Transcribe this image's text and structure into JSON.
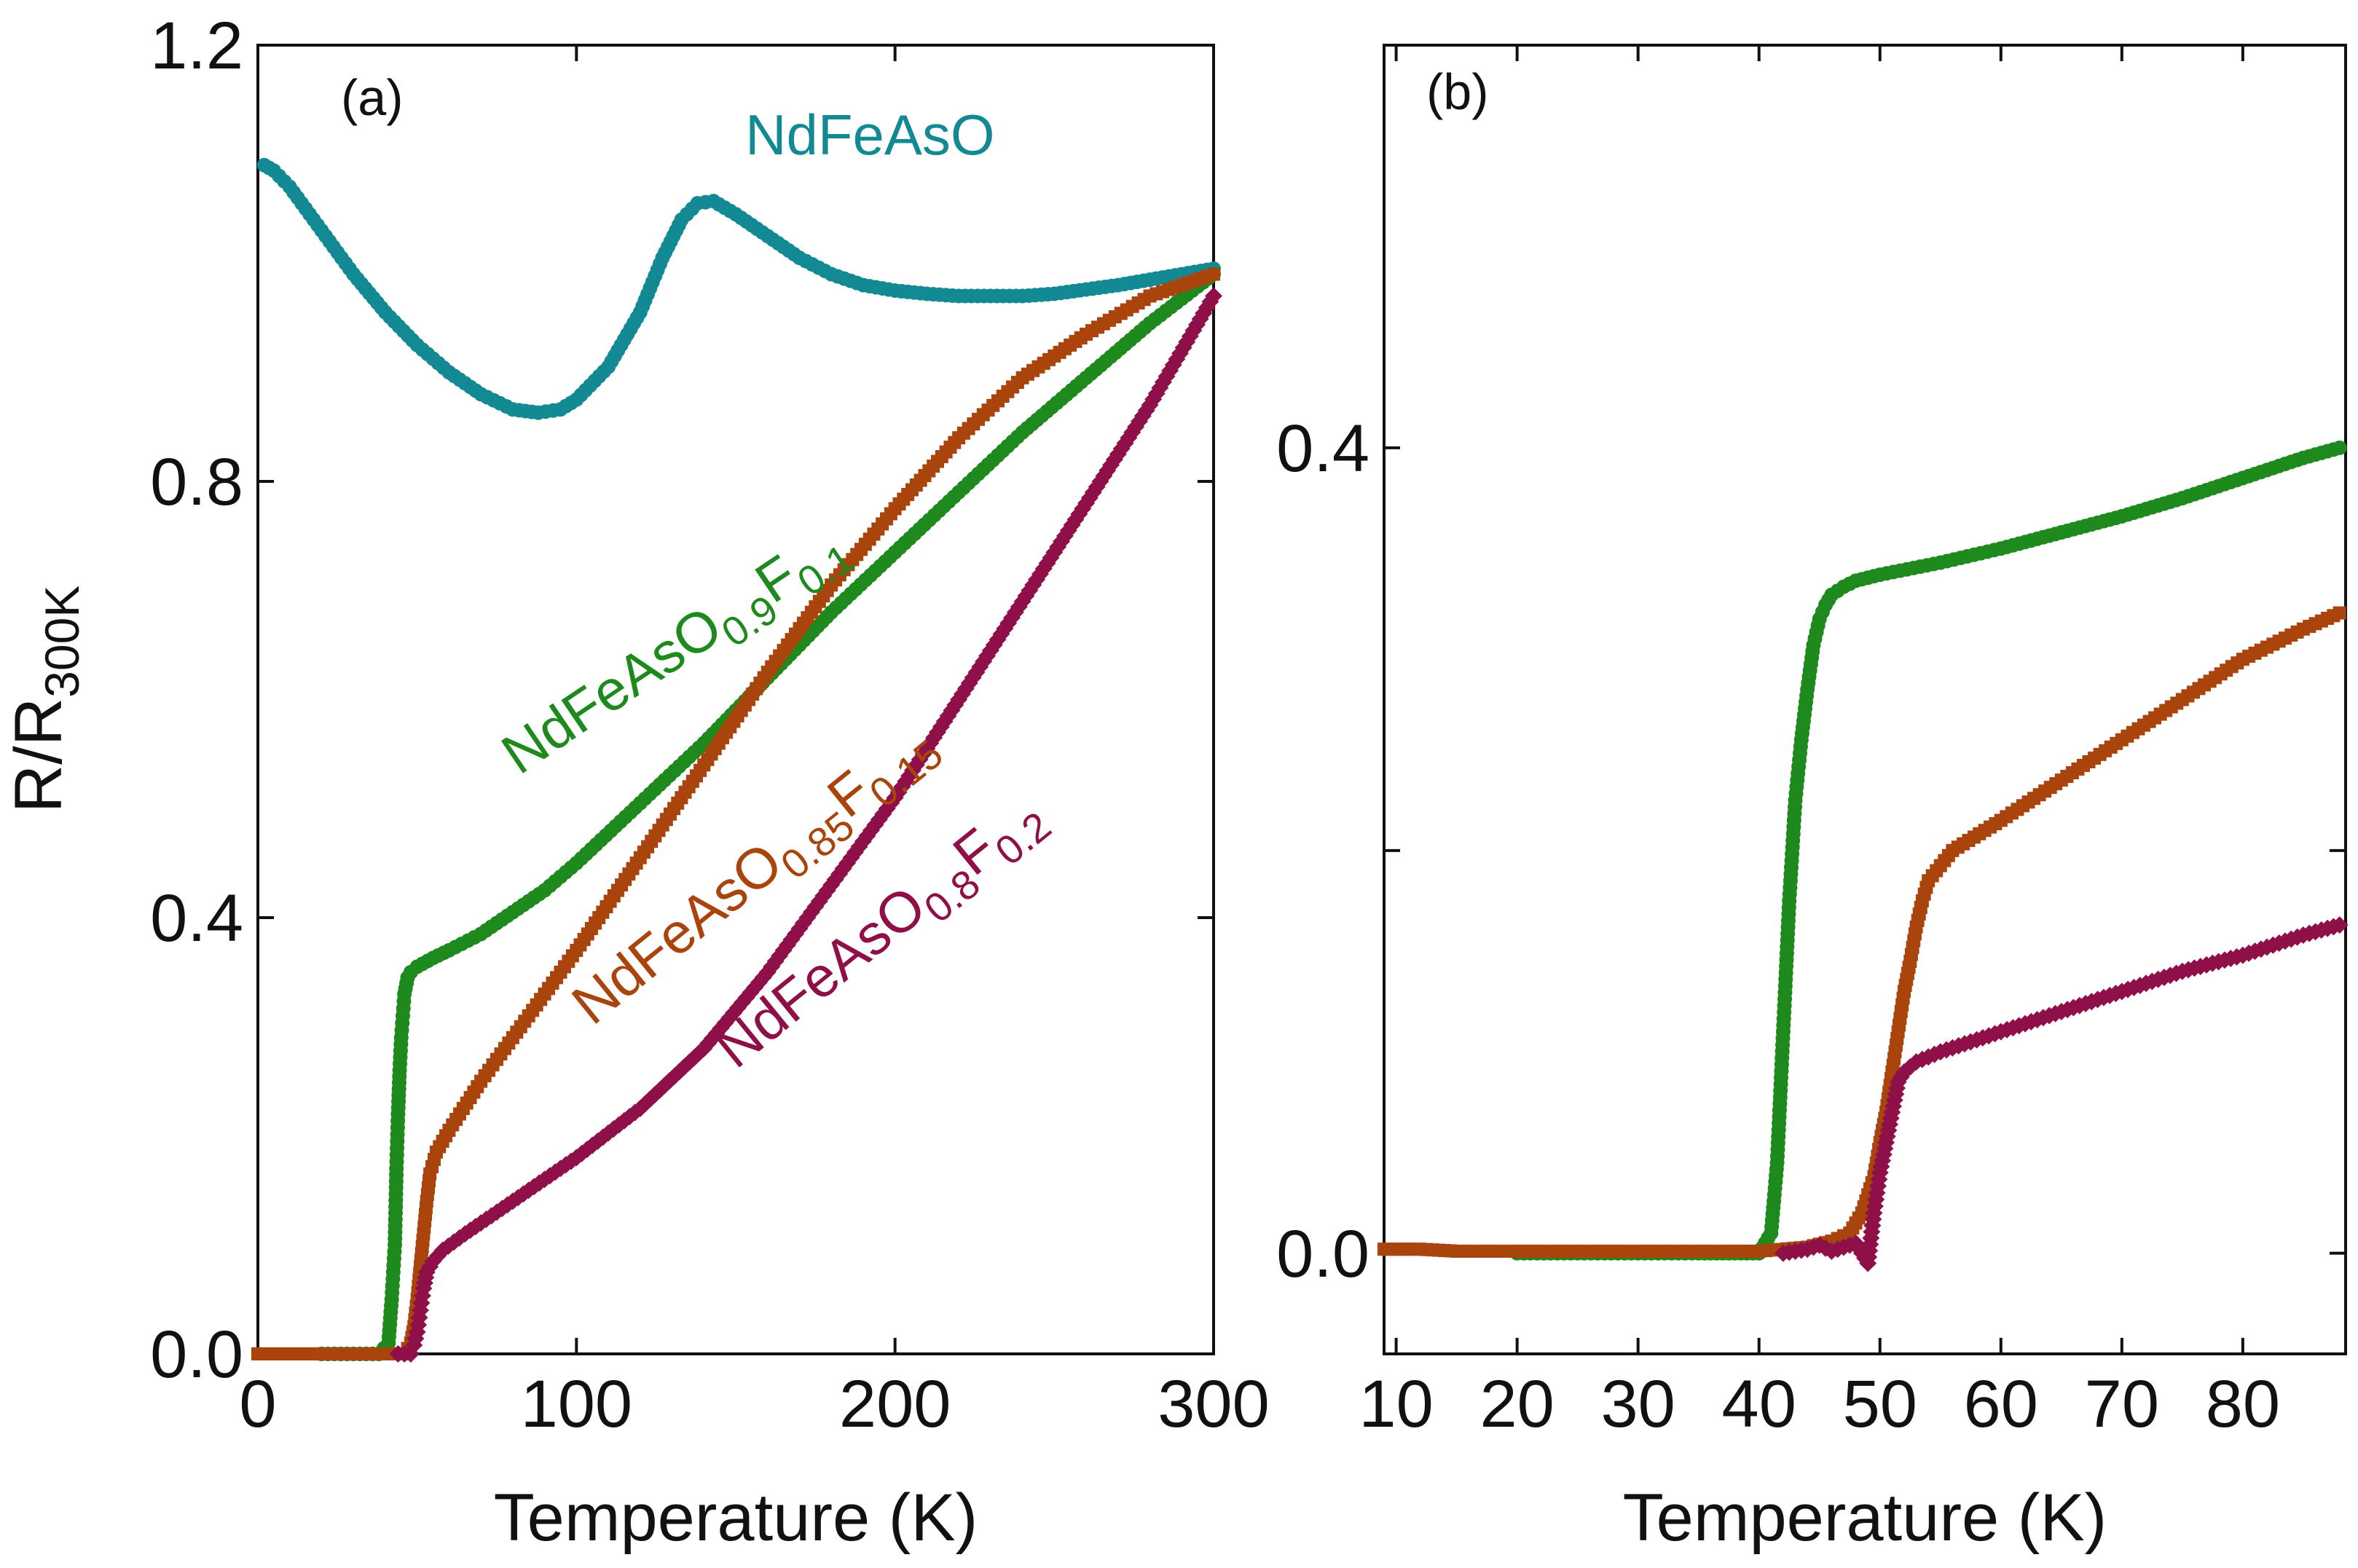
{
  "chart_data": [
    {
      "type": "scatter",
      "panel_label": "(a)",
      "xlabel": "Temperature (K)",
      "ylabel": "R/R",
      "ylabel_sub": "300K",
      "xlim": [
        0,
        300
      ],
      "ylim": [
        0,
        1.2
      ],
      "xticks": [
        0,
        100,
        200,
        300
      ],
      "yticks": [
        0.0,
        0.4,
        0.8,
        1.2
      ],
      "xtick_labels": [
        "0",
        "100",
        "200",
        "300"
      ],
      "ytick_labels": [
        "0.0",
        "0.4",
        "0.8",
        "1.2"
      ],
      "grid": false,
      "annotations": [
        {
          "id": "ann-nd",
          "parts": [
            {
              "t": "NdFeAsO"
            }
          ],
          "color": "#138a93",
          "x": 153,
          "y": 1.1,
          "rotate": 0
        },
        {
          "id": "ann-f01",
          "parts": [
            {
              "t": "NdFeAsO"
            },
            {
              "t": "0.9",
              "sub": true
            },
            {
              "t": "F"
            },
            {
              "t": "0.1",
              "sub": true
            }
          ],
          "color": "#1e8a1e",
          "x": 82,
          "y": 0.53,
          "rotate": -34
        },
        {
          "id": "ann-f015",
          "parts": [
            {
              "t": "NdFeAsO"
            },
            {
              "t": "0.85",
              "sub": true
            },
            {
              "t": "F"
            },
            {
              "t": "0.15",
              "sub": true
            }
          ],
          "color": "#a8440c",
          "x": 105,
          "y": 0.3,
          "rotate": -39
        },
        {
          "id": "ann-f02",
          "parts": [
            {
              "t": "NdFeAsO"
            },
            {
              "t": "0.8",
              "sub": true
            },
            {
              "t": "F"
            },
            {
              "t": "0.2",
              "sub": true
            }
          ],
          "color": "#8f1048",
          "x": 150,
          "y": 0.26,
          "rotate": -39
        }
      ],
      "series": [
        {
          "name": "NdFeAsO",
          "color": "#138a93",
          "marker": "circle",
          "connect": false,
          "points": [
            [
              2,
              1.09
            ],
            [
              5,
              1.085
            ],
            [
              10,
              1.07
            ],
            [
              15,
              1.05
            ],
            [
              20,
              1.03
            ],
            [
              30,
              0.99
            ],
            [
              40,
              0.955
            ],
            [
              50,
              0.925
            ],
            [
              60,
              0.9
            ],
            [
              70,
              0.88
            ],
            [
              80,
              0.866
            ],
            [
              88,
              0.863
            ],
            [
              95,
              0.866
            ],
            [
              100,
              0.875
            ],
            [
              110,
              0.905
            ],
            [
              120,
              0.955
            ],
            [
              127,
              1.005
            ],
            [
              133,
              1.04
            ],
            [
              138,
              1.055
            ],
            [
              143,
              1.057
            ],
            [
              150,
              1.045
            ],
            [
              160,
              1.025
            ],
            [
              170,
              1.005
            ],
            [
              180,
              0.99
            ],
            [
              190,
              0.98
            ],
            [
              200,
              0.975
            ],
            [
              210,
              0.972
            ],
            [
              220,
              0.97
            ],
            [
              230,
              0.97
            ],
            [
              240,
              0.97
            ],
            [
              250,
              0.972
            ],
            [
              260,
              0.976
            ],
            [
              270,
              0.98
            ],
            [
              280,
              0.985
            ],
            [
              290,
              0.99
            ],
            [
              300,
              0.995
            ]
          ]
        },
        {
          "name": "NdFeAsO0.9F0.1",
          "color": "#1e8a1e",
          "marker": "circle",
          "connect": true,
          "points": [
            [
              20,
              0.0
            ],
            [
              30,
              0.0
            ],
            [
              38,
              0.0
            ],
            [
              41,
              0.01
            ],
            [
              42,
              0.05
            ],
            [
              43,
              0.1
            ],
            [
              43.5,
              0.17
            ],
            [
              44,
              0.22
            ],
            [
              44.5,
              0.26
            ],
            [
              45,
              0.29
            ],
            [
              45.5,
              0.31
            ],
            [
              46,
              0.33
            ],
            [
              47,
              0.345
            ],
            [
              48,
              0.35
            ],
            [
              50,
              0.355
            ],
            [
              55,
              0.363
            ],
            [
              60,
              0.37
            ],
            [
              70,
              0.385
            ],
            [
              80,
              0.405
            ],
            [
              90,
              0.425
            ],
            [
              100,
              0.45
            ],
            [
              120,
              0.505
            ],
            [
              140,
              0.56
            ],
            [
              160,
              0.62
            ],
            [
              180,
              0.68
            ],
            [
              200,
              0.735
            ],
            [
              220,
              0.79
            ],
            [
              240,
              0.845
            ],
            [
              260,
              0.895
            ],
            [
              280,
              0.945
            ],
            [
              300,
              0.99
            ]
          ]
        },
        {
          "name": "NdFeAsO0.85F0.15",
          "color": "#a8440c",
          "marker": "square",
          "connect": false,
          "points": [
            [
              0,
              0.0
            ],
            [
              10,
              0.0
            ],
            [
              20,
              0.0
            ],
            [
              30,
              0.0
            ],
            [
              38,
              0.0
            ],
            [
              44,
              0.0
            ],
            [
              46,
              0.0
            ],
            [
              48,
              0.01
            ],
            [
              49,
              0.025
            ],
            [
              50,
              0.05
            ],
            [
              51,
              0.08
            ],
            [
              52,
              0.11
            ],
            [
              53,
              0.14
            ],
            [
              54,
              0.165
            ],
            [
              56,
              0.185
            ],
            [
              60,
              0.205
            ],
            [
              70,
              0.25
            ],
            [
              80,
              0.29
            ],
            [
              90,
              0.33
            ],
            [
              100,
              0.37
            ],
            [
              120,
              0.455
            ],
            [
              140,
              0.54
            ],
            [
              160,
              0.625
            ],
            [
              180,
              0.705
            ],
            [
              200,
              0.775
            ],
            [
              220,
              0.84
            ],
            [
              240,
              0.895
            ],
            [
              260,
              0.935
            ],
            [
              280,
              0.97
            ],
            [
              300,
              0.99
            ]
          ]
        },
        {
          "name": "NdFeAsO0.8F0.2",
          "color": "#8f1048",
          "marker": "diamond",
          "connect": false,
          "points": [
            [
              44,
              0.0
            ],
            [
              46,
              0.0
            ],
            [
              48,
              0.0
            ],
            [
              49,
              0.008
            ],
            [
              50,
              0.02
            ],
            [
              51,
              0.04
            ],
            [
              52,
              0.06
            ],
            [
              53,
              0.075
            ],
            [
              55,
              0.085
            ],
            [
              58,
              0.095
            ],
            [
              65,
              0.11
            ],
            [
              75,
              0.13
            ],
            [
              85,
              0.15
            ],
            [
              100,
              0.18
            ],
            [
              120,
              0.225
            ],
            [
              140,
              0.28
            ],
            [
              160,
              0.35
            ],
            [
              180,
              0.43
            ],
            [
              200,
              0.51
            ],
            [
              220,
              0.6
            ],
            [
              240,
              0.69
            ],
            [
              260,
              0.78
            ],
            [
              280,
              0.87
            ],
            [
              300,
              0.97
            ]
          ]
        }
      ]
    },
    {
      "type": "scatter",
      "panel_label": "(b)",
      "xlabel": "Temperature (K)",
      "xlim": [
        9,
        88.5
      ],
      "ylim": [
        -0.05,
        0.6
      ],
      "xticks": [
        10,
        20,
        30,
        40,
        50,
        60,
        70,
        80
      ],
      "yticks": [
        0.0,
        0.2,
        0.4
      ],
      "xtick_labels": [
        "10",
        "20",
        "30",
        "40",
        "50",
        "60",
        "70",
        "80"
      ],
      "ytick_labels": [
        "0.0",
        "0.4"
      ],
      "ytick_label_values": [
        0.0,
        0.4
      ],
      "grid": false,
      "series": [
        {
          "name": "NdFeAsO0.9F0.1",
          "color": "#1e8a1e",
          "marker": "circle",
          "connect": true,
          "points": [
            [
              20,
              0.0
            ],
            [
              25,
              0.0
            ],
            [
              30,
              0.0
            ],
            [
              35,
              0.0
            ],
            [
              38,
              0.0
            ],
            [
              40,
              0.0
            ],
            [
              41,
              0.01
            ],
            [
              41.5,
              0.045
            ],
            [
              42,
              0.11
            ],
            [
              42.5,
              0.175
            ],
            [
              43,
              0.225
            ],
            [
              43.5,
              0.255
            ],
            [
              44,
              0.28
            ],
            [
              44.5,
              0.302
            ],
            [
              45,
              0.315
            ],
            [
              45.5,
              0.322
            ],
            [
              46,
              0.327
            ],
            [
              47,
              0.331
            ],
            [
              48,
              0.334
            ],
            [
              50,
              0.337
            ],
            [
              55,
              0.343
            ],
            [
              60,
              0.35
            ],
            [
              65,
              0.358
            ],
            [
              70,
              0.366
            ],
            [
              75,
              0.375
            ],
            [
              80,
              0.385
            ],
            [
              85,
              0.395
            ],
            [
              88,
              0.4
            ]
          ]
        },
        {
          "name": "NdFeAsO0.85F0.15",
          "color": "#a8440c",
          "marker": "square",
          "connect": false,
          "points": [
            [
              9,
              0.002
            ],
            [
              12,
              0.002
            ],
            [
              15,
              0.001
            ],
            [
              20,
              0.001
            ],
            [
              25,
              0.001
            ],
            [
              30,
              0.001
            ],
            [
              35,
              0.001
            ],
            [
              40,
              0.001
            ],
            [
              44,
              0.003
            ],
            [
              46,
              0.006
            ],
            [
              47.5,
              0.01
            ],
            [
              48.5,
              0.02
            ],
            [
              49.5,
              0.038
            ],
            [
              50,
              0.055
            ],
            [
              50.5,
              0.07
            ],
            [
              51,
              0.09
            ],
            [
              51.5,
              0.11
            ],
            [
              52,
              0.13
            ],
            [
              52.5,
              0.145
            ],
            [
              53,
              0.162
            ],
            [
              53.5,
              0.175
            ],
            [
              54,
              0.185
            ],
            [
              56,
              0.2
            ],
            [
              60,
              0.215
            ],
            [
              65,
              0.235
            ],
            [
              70,
              0.255
            ],
            [
              75,
              0.275
            ],
            [
              80,
              0.295
            ],
            [
              85,
              0.31
            ],
            [
              88,
              0.318
            ]
          ]
        },
        {
          "name": "NdFeAsO0.8F0.2",
          "color": "#8f1048",
          "marker": "diamond",
          "connect": false,
          "points": [
            [
              42,
              0.0
            ],
            [
              44,
              0.002
            ],
            [
              45,
              0.004
            ],
            [
              46,
              0.001
            ],
            [
              47,
              0.003
            ],
            [
              48,
              0.005
            ],
            [
              48.5,
              0.0
            ],
            [
              49,
              -0.005
            ],
            [
              49.5,
              0.02
            ],
            [
              50,
              0.04
            ],
            [
              50.5,
              0.055
            ],
            [
              51,
              0.07
            ],
            [
              51.5,
              0.085
            ],
            [
              52,
              0.09
            ],
            [
              53,
              0.095
            ],
            [
              55,
              0.1
            ],
            [
              60,
              0.11
            ],
            [
              65,
              0.12
            ],
            [
              70,
              0.13
            ],
            [
              75,
              0.14
            ],
            [
              80,
              0.148
            ],
            [
              85,
              0.158
            ],
            [
              88,
              0.163
            ]
          ]
        }
      ]
    }
  ]
}
